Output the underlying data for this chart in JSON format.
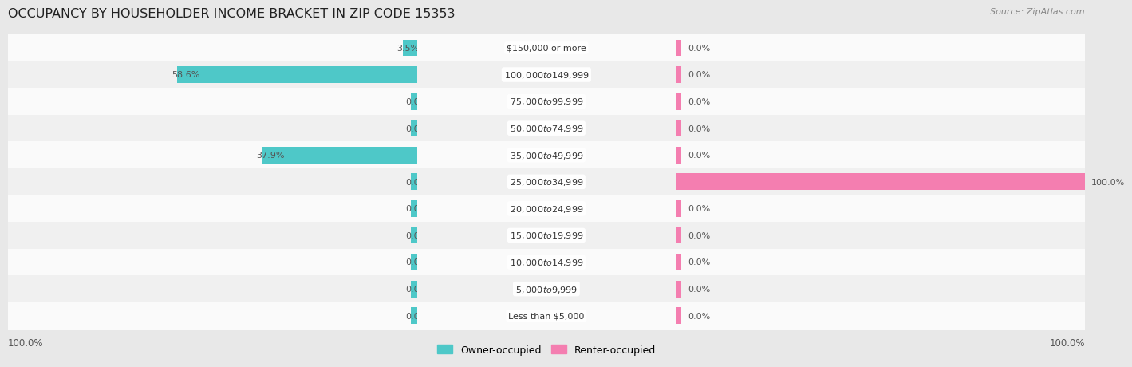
{
  "title": "OCCUPANCY BY HOUSEHOLDER INCOME BRACKET IN ZIP CODE 15353",
  "source": "Source: ZipAtlas.com",
  "categories": [
    "Less than $5,000",
    "$5,000 to $9,999",
    "$10,000 to $14,999",
    "$15,000 to $19,999",
    "$20,000 to $24,999",
    "$25,000 to $34,999",
    "$35,000 to $49,999",
    "$50,000 to $74,999",
    "$75,000 to $99,999",
    "$100,000 to $149,999",
    "$150,000 or more"
  ],
  "owner_values": [
    0.0,
    0.0,
    0.0,
    0.0,
    0.0,
    0.0,
    37.9,
    0.0,
    0.0,
    58.6,
    3.5
  ],
  "renter_values": [
    0.0,
    0.0,
    0.0,
    0.0,
    0.0,
    100.0,
    0.0,
    0.0,
    0.0,
    0.0,
    0.0
  ],
  "owner_color": "#4EC8C8",
  "renter_color": "#F47EB0",
  "owner_label": "Owner-occupied",
  "renter_label": "Renter-occupied",
  "bg_color": "#e8e8e8",
  "row_color_odd": "#f0f0f0",
  "row_color_even": "#fafafa",
  "title_color": "#222222",
  "value_text_color": "#555555",
  "label_text_color": "#333333",
  "bar_height": 0.62,
  "max_value": 100.0,
  "x_left_label": "100.0%",
  "x_right_label": "100.0%",
  "title_fontsize": 11.5,
  "source_fontsize": 8,
  "label_fontsize": 8,
  "value_fontsize": 8
}
